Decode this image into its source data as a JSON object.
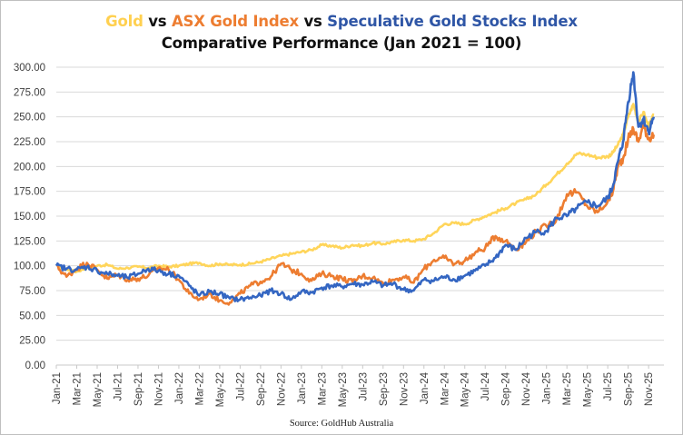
{
  "chart_data": {
    "type": "line",
    "title_parts": [
      {
        "text": "Gold",
        "series": "gold"
      },
      {
        "text": " vs ",
        "series": null
      },
      {
        "text": "ASX Gold Index",
        "series": "asx"
      },
      {
        "text": " vs ",
        "series": null
      },
      {
        "text": "Speculative Gold Stocks Index",
        "series": "spec"
      }
    ],
    "subtitle": "Comparative Performance (Jan 2021 = 100)",
    "source": "Source: GoldHub Australia",
    "xlabel": "",
    "ylabel": "",
    "ylim": [
      0,
      300
    ],
    "yticks": [
      "0.00",
      "25.00",
      "50.00",
      "75.00",
      "100.00",
      "125.00",
      "150.00",
      "175.00",
      "200.00",
      "225.00",
      "250.00",
      "275.00",
      "300.00"
    ],
    "xticks": [
      "Jan-21",
      "Mar-21",
      "May-21",
      "Jul-21",
      "Sep-21",
      "Nov-21",
      "Jan-22",
      "Mar-22",
      "May-22",
      "Jul-22",
      "Sep-22",
      "Nov-22",
      "Jan-23",
      "Mar-23",
      "May-23",
      "Jul-23",
      "Sep-23",
      "Nov-23",
      "Jan-24",
      "Mar-24",
      "May-24",
      "Jul-24",
      "Sep-24",
      "Nov-24",
      "Jan-25",
      "Mar-25",
      "May-25",
      "Jul-25",
      "Sep-25",
      "Nov-25"
    ],
    "grid": true,
    "legend": "title",
    "x_months": [
      0,
      1,
      2,
      3,
      4,
      5,
      6,
      7,
      8,
      9,
      10,
      11,
      12,
      13,
      14,
      15,
      16,
      17,
      18,
      19,
      20,
      21,
      22,
      23,
      24,
      25,
      26,
      27,
      28,
      29,
      30,
      31,
      32,
      33,
      34,
      35,
      36,
      37,
      38,
      39,
      40,
      41,
      42,
      43,
      44,
      45,
      46,
      47,
      48,
      49,
      50,
      51,
      52,
      53,
      54,
      54.5,
      55,
      55.5,
      56,
      56.5,
      57,
      57.5,
      58,
      58.5
    ],
    "series": [
      {
        "name": "Gold",
        "key": "gold",
        "color": "#ffd55a",
        "values": [
          100,
          96,
          94,
          98,
          100,
          101,
          97,
          98,
          99,
          98,
          100,
          99,
          100,
          102,
          103,
          100,
          102,
          101,
          101,
          102,
          104,
          107,
          110,
          112,
          114,
          116,
          121,
          120,
          118,
          121,
          120,
          123,
          122,
          124,
          126,
          125,
          127,
          133,
          142,
          143,
          142,
          146,
          150,
          154,
          158,
          163,
          167,
          172,
          182,
          192,
          203,
          213,
          212,
          209,
          210,
          214,
          222,
          232,
          250,
          263,
          245,
          255,
          240,
          252
        ]
      },
      {
        "name": "ASX Gold Index",
        "key": "asx",
        "color": "#ed7d31",
        "values": [
          100,
          89,
          97,
          103,
          96,
          87,
          91,
          86,
          87,
          90,
          98,
          96,
          86,
          72,
          66,
          72,
          65,
          63,
          72,
          80,
          84,
          89,
          102,
          96,
          92,
          85,
          92,
          90,
          87,
          84,
          90,
          88,
          82,
          86,
          89,
          83,
          97,
          106,
          108,
          102,
          105,
          113,
          118,
          130,
          125,
          117,
          124,
          135,
          140,
          147,
          172,
          174,
          160,
          154,
          165,
          175,
          200,
          208,
          228,
          238,
          225,
          242,
          228,
          232
        ]
      },
      {
        "name": "Speculative Gold Stocks Index",
        "key": "spec",
        "color": "#3466c2",
        "values": [
          100,
          97,
          96,
          99,
          95,
          92,
          90,
          88,
          92,
          97,
          95,
          92,
          90,
          80,
          70,
          74,
          72,
          67,
          66,
          68,
          70,
          75,
          72,
          66,
          74,
          73,
          78,
          80,
          79,
          82,
          81,
          84,
          80,
          82,
          76,
          75,
          86,
          85,
          89,
          86,
          90,
          95,
          100,
          108,
          121,
          116,
          128,
          134,
          135,
          148,
          150,
          158,
          164,
          160,
          168,
          180,
          205,
          225,
          265,
          295,
          240,
          248,
          235,
          250
        ]
      }
    ]
  }
}
